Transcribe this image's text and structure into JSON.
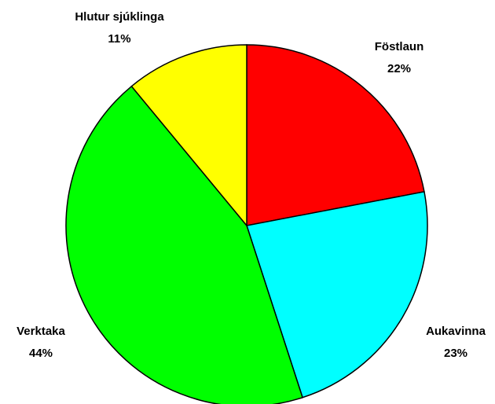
{
  "chart_data": {
    "type": "pie",
    "categories": [
      "Föstlaun",
      "Aukavinna",
      "Verktaka",
      "Hlutur sjúklinga"
    ],
    "values": [
      22,
      23,
      44,
      11
    ],
    "value_labels": [
      "22%",
      "23%",
      "44%",
      "11%"
    ],
    "colors": [
      "#ff0000",
      "#00ffff",
      "#00ff00",
      "#ffff00"
    ]
  }
}
